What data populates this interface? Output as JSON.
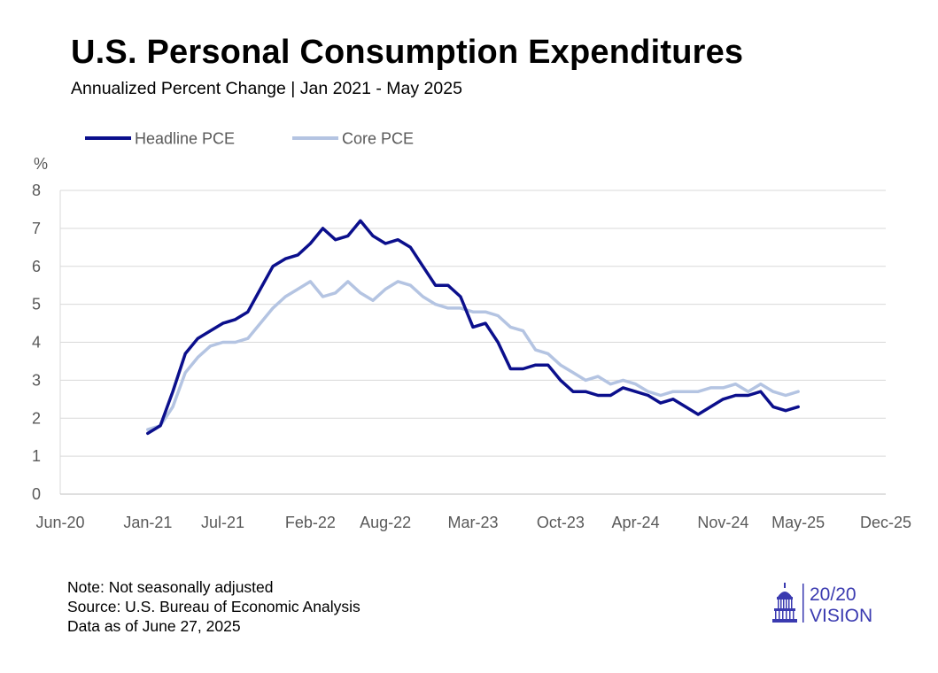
{
  "title": "U.S. Personal Consumption Expenditures",
  "subtitle": "Annualized Percent Change | Jan 2021 - May 2025",
  "notes": [
    "Note: Not seasonally adjusted",
    "Source: U.S. Bureau of Economic Analysis",
    "Data as of June 27, 2025"
  ],
  "logo": {
    "text_top": "20/20",
    "text_bottom": "VISION",
    "icon": "capitol-dome-icon"
  },
  "colors": {
    "headline": "#0b0f8c",
    "core": "#b4c4e2",
    "logo": "#3a3ab0",
    "grid": "#d9d9d9"
  },
  "chart_data": {
    "type": "line",
    "title": "U.S. Personal Consumption Expenditures",
    "subtitle": "Annualized Percent Change | Jan 2021 - May 2025",
    "ylabel": "%",
    "ylim": [
      0,
      8
    ],
    "yticks": [
      "0",
      "1",
      "2",
      "3",
      "4",
      "5",
      "6",
      "7",
      "8"
    ],
    "xlim": [
      "2020-06",
      "2025-12"
    ],
    "xticks": [
      "Jun-20",
      "Jan-21",
      "Jul-21",
      "Feb-22",
      "Aug-22",
      "Mar-23",
      "Oct-23",
      "Apr-24",
      "Nov-24",
      "May-25",
      "Dec-25"
    ],
    "xtick_months": [
      "2020-06",
      "2021-01",
      "2021-07",
      "2022-02",
      "2022-08",
      "2023-03",
      "2023-10",
      "2024-04",
      "2024-11",
      "2025-05",
      "2025-12"
    ],
    "x": [
      "2021-01",
      "2021-02",
      "2021-03",
      "2021-04",
      "2021-05",
      "2021-06",
      "2021-07",
      "2021-08",
      "2021-09",
      "2021-10",
      "2021-11",
      "2021-12",
      "2022-01",
      "2022-02",
      "2022-03",
      "2022-04",
      "2022-05",
      "2022-06",
      "2022-07",
      "2022-08",
      "2022-09",
      "2022-10",
      "2022-11",
      "2022-12",
      "2023-01",
      "2023-02",
      "2023-03",
      "2023-04",
      "2023-05",
      "2023-06",
      "2023-07",
      "2023-08",
      "2023-09",
      "2023-10",
      "2023-11",
      "2023-12",
      "2024-01",
      "2024-02",
      "2024-03",
      "2024-04",
      "2024-05",
      "2024-06",
      "2024-07",
      "2024-08",
      "2024-09",
      "2024-10",
      "2024-11",
      "2024-12",
      "2025-01",
      "2025-02",
      "2025-03",
      "2025-04",
      "2025-05"
    ],
    "legend_position": "top-left",
    "grid": true,
    "series": [
      {
        "name": "Headline PCE",
        "color": "#0b0f8c",
        "values": [
          1.6,
          1.8,
          2.7,
          3.7,
          4.1,
          4.3,
          4.5,
          4.6,
          4.8,
          5.4,
          6.0,
          6.2,
          6.3,
          6.6,
          7.0,
          6.7,
          6.8,
          7.2,
          6.8,
          6.6,
          6.7,
          6.5,
          6.0,
          5.5,
          5.5,
          5.2,
          4.4,
          4.5,
          4.0,
          3.3,
          3.3,
          3.4,
          3.4,
          3.0,
          2.7,
          2.7,
          2.6,
          2.6,
          2.8,
          2.7,
          2.6,
          2.4,
          2.5,
          2.3,
          2.1,
          2.3,
          2.5,
          2.6,
          2.6,
          2.7,
          2.3,
          2.2,
          2.3
        ]
      },
      {
        "name": "Core PCE",
        "color": "#b4c4e2",
        "values": [
          1.7,
          1.8,
          2.3,
          3.2,
          3.6,
          3.9,
          4.0,
          4.0,
          4.1,
          4.5,
          4.9,
          5.2,
          5.4,
          5.6,
          5.2,
          5.3,
          5.6,
          5.3,
          5.1,
          5.4,
          5.6,
          5.5,
          5.2,
          5.0,
          4.9,
          4.9,
          4.8,
          4.8,
          4.7,
          4.4,
          4.3,
          3.8,
          3.7,
          3.4,
          3.2,
          3.0,
          3.1,
          2.9,
          3.0,
          2.9,
          2.7,
          2.6,
          2.7,
          2.7,
          2.7,
          2.8,
          2.8,
          2.9,
          2.7,
          2.9,
          2.7,
          2.6,
          2.7
        ]
      }
    ]
  }
}
